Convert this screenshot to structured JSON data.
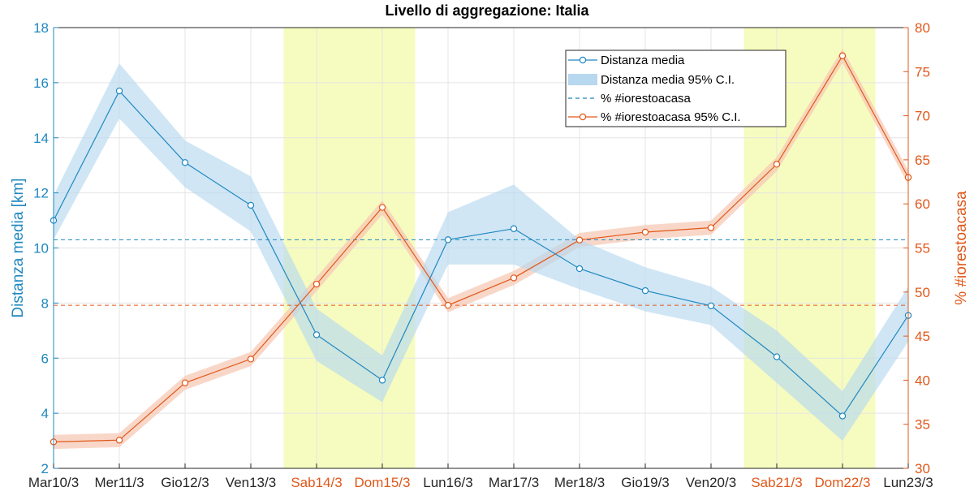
{
  "chart_data": {
    "type": "line",
    "title": "Livello di aggregazione: Italia",
    "categories": [
      "Mar10/3",
      "Mer11/3",
      "Gio12/3",
      "Ven13/3",
      "Sab14/3",
      "Dom15/3",
      "Lun16/3",
      "Mar17/3",
      "Mer18/3",
      "Gio19/3",
      "Ven20/3",
      "Sab21/3",
      "Dom22/3",
      "Lun23/3"
    ],
    "weekend_categories": [
      "Sab14/3",
      "Dom15/3",
      "Sab21/3",
      "Dom22/3"
    ],
    "weekend_spans": [
      [
        "Sab14/3",
        "Dom15/3"
      ],
      [
        "Sab21/3",
        "Dom22/3"
      ]
    ],
    "ylabel_left": "Distanza media [km]",
    "ylabel_right": "% #iorestoacasa",
    "ylim_left": [
      2,
      18
    ],
    "yticks_left": [
      2,
      4,
      6,
      8,
      10,
      12,
      14,
      16,
      18
    ],
    "ylim_right": [
      30,
      80
    ],
    "yticks_right": [
      30,
      35,
      40,
      45,
      50,
      55,
      60,
      65,
      70,
      75,
      80
    ],
    "grid": true,
    "legend_position": "top-right",
    "series": [
      {
        "name": "Distanza media",
        "axis": "left",
        "color": "#1f88c0",
        "values": [
          11.0,
          15.7,
          13.1,
          11.55,
          6.85,
          5.2,
          10.3,
          10.7,
          9.25,
          8.45,
          7.9,
          6.05,
          3.9,
          7.55
        ],
        "ci_lower": [
          10.3,
          14.7,
          12.2,
          10.6,
          5.9,
          4.4,
          9.4,
          9.4,
          8.5,
          7.7,
          7.2,
          5.1,
          3.0,
          6.6
        ],
        "ci_upper": [
          11.9,
          16.7,
          13.9,
          12.6,
          7.8,
          6.1,
          11.3,
          12.3,
          10.3,
          9.3,
          8.6,
          7.0,
          4.8,
          8.6
        ],
        "ci_name": "Distanza media 95% C.I.",
        "mean_line": 10.3,
        "mean_line_name": "% #iorestoacasa"
      },
      {
        "name": "% #iorestoacasa",
        "axis": "right",
        "color": "#e0581a",
        "values": [
          33.0,
          33.2,
          39.7,
          42.4,
          50.9,
          59.6,
          48.5,
          51.6,
          55.9,
          56.8,
          57.3,
          64.5,
          76.8,
          63.0
        ],
        "ci_lower": [
          32.2,
          32.4,
          38.9,
          41.6,
          50.1,
          58.8,
          47.7,
          50.8,
          55.1,
          56.0,
          56.5,
          63.7,
          76.0,
          62.2
        ],
        "ci_upper": [
          33.8,
          34.0,
          40.5,
          43.2,
          51.7,
          60.4,
          49.3,
          52.4,
          56.7,
          57.6,
          58.1,
          65.3,
          77.6,
          63.8
        ],
        "ci_name": "% #iorestoacasa 95% C.I.",
        "mean_line": 48.5
      }
    ]
  },
  "colors": {
    "blue": "#1f88c0",
    "blue_band": "#b7d8ef",
    "orange": "#e0581a",
    "orange_band": "#f7c9b6",
    "weekend": "#f6fcbf",
    "grid": "#e4e4e4",
    "axis": "#262626"
  }
}
